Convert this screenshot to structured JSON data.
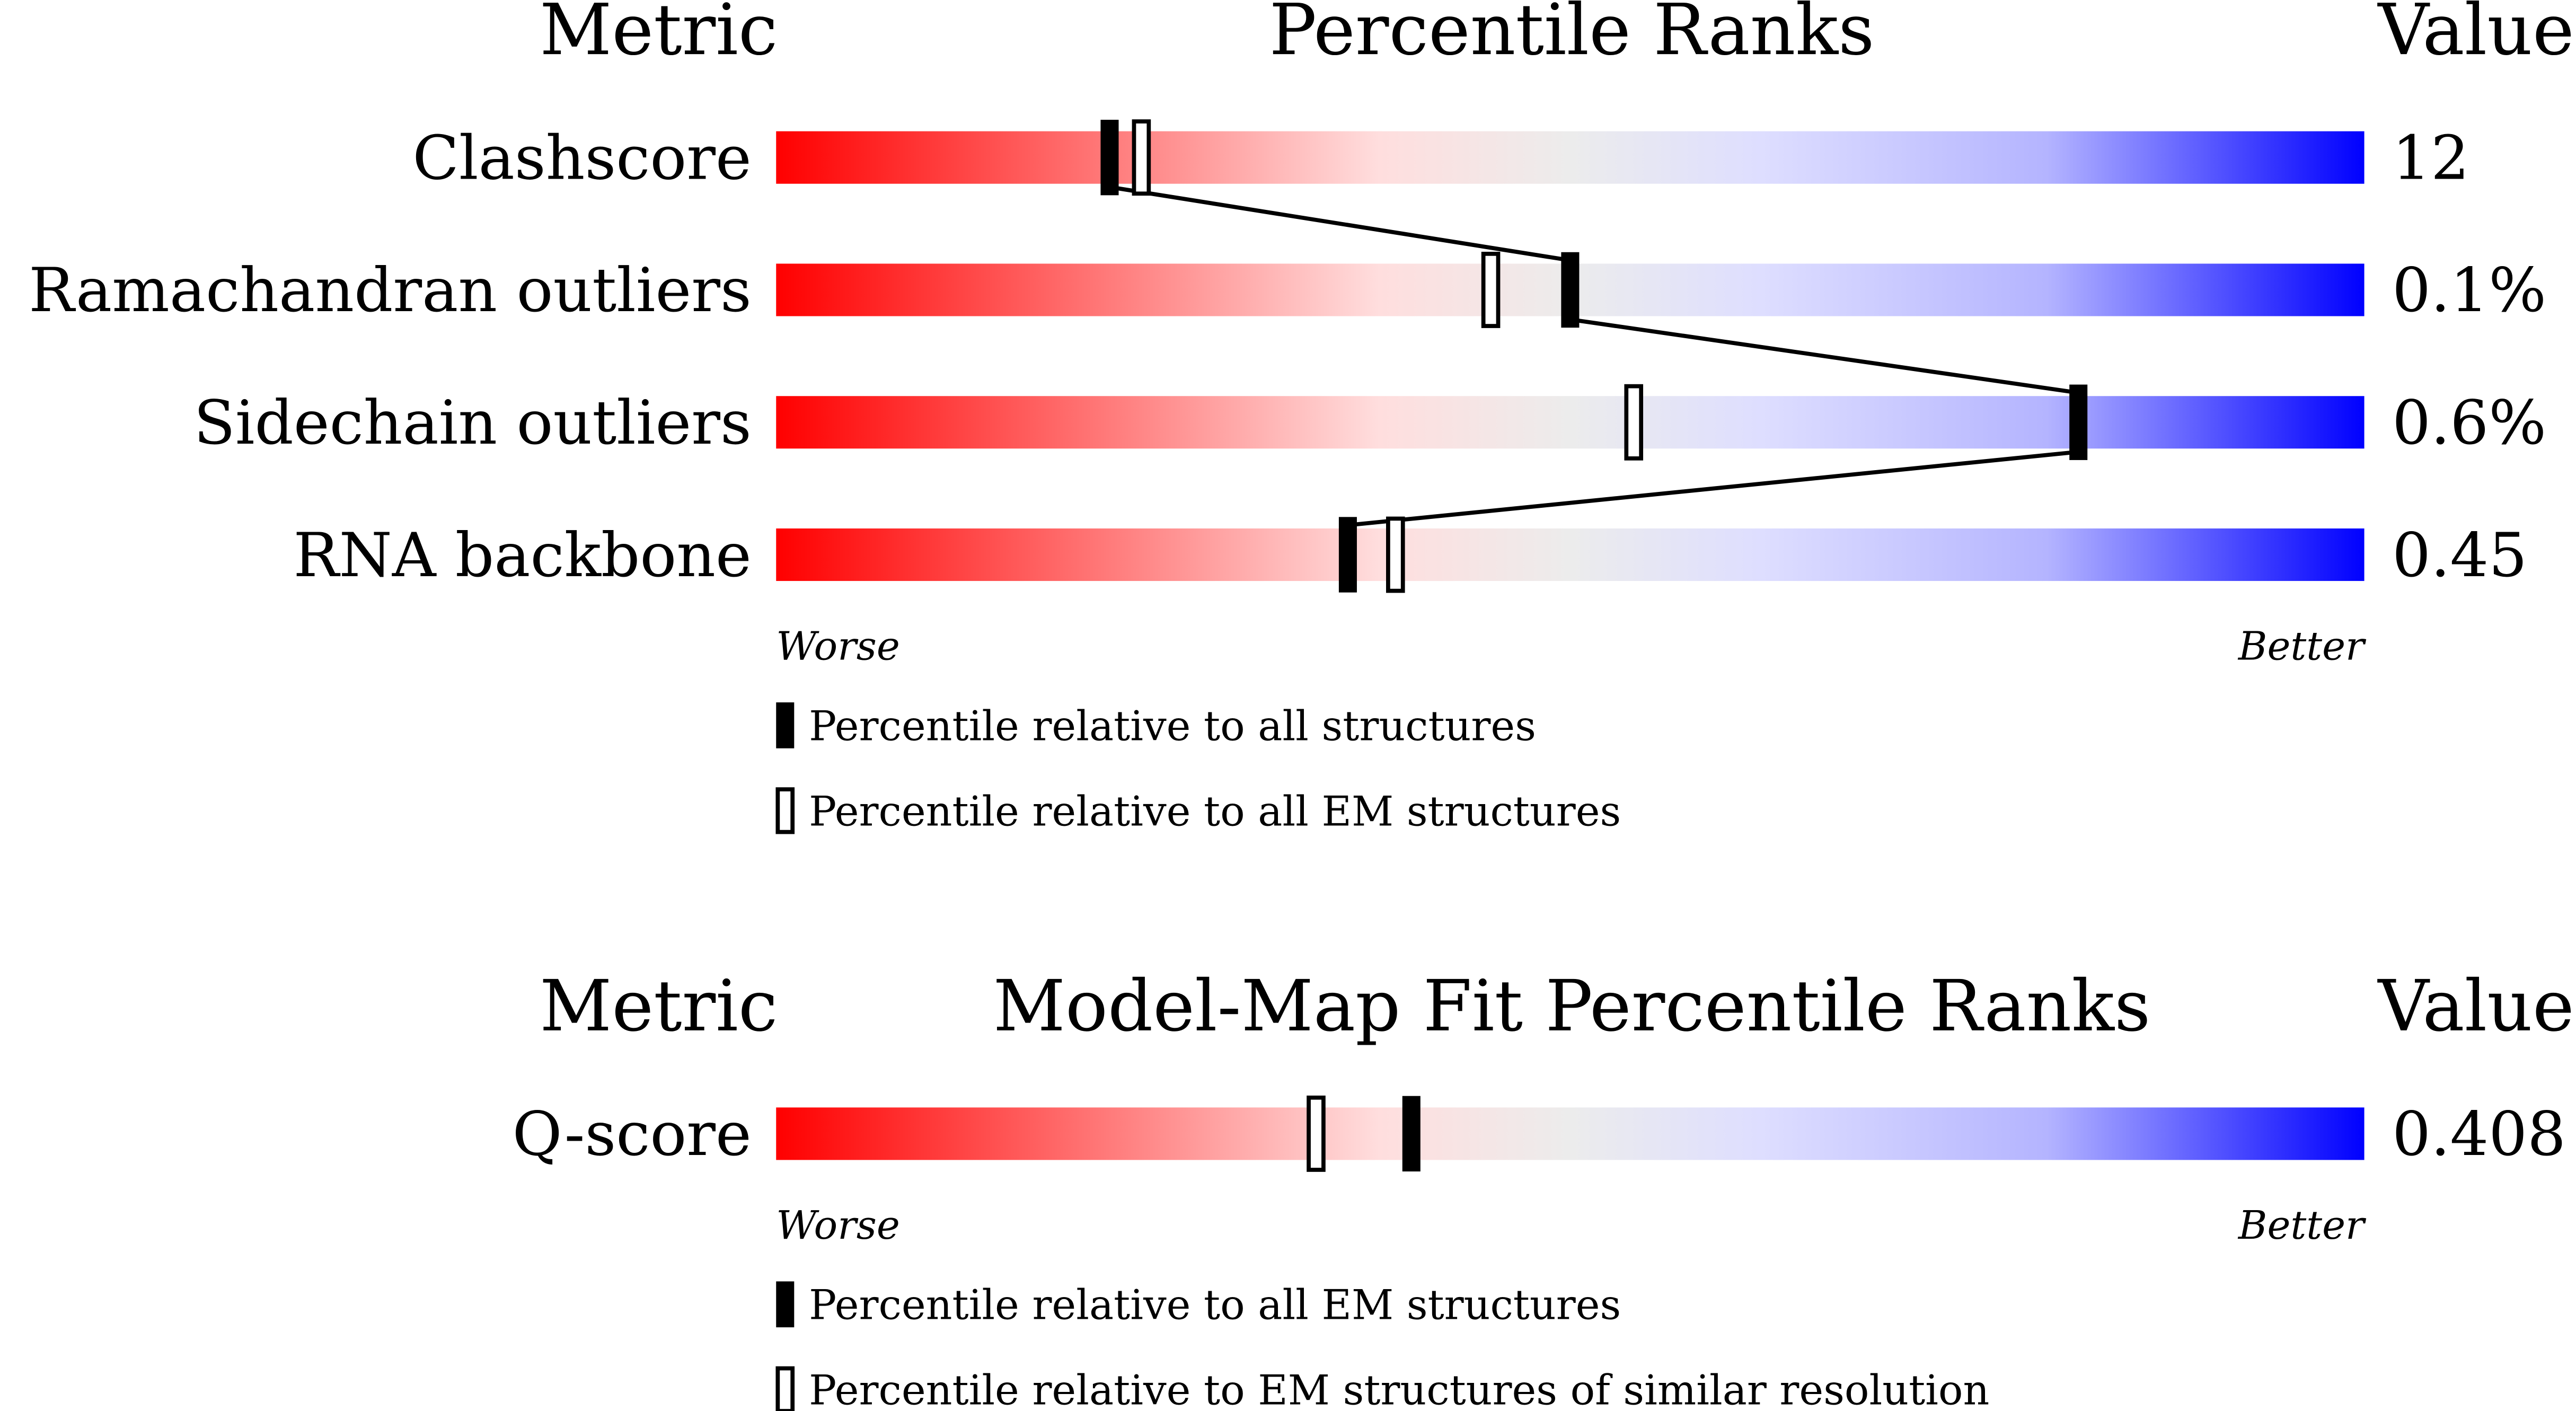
{
  "panels": [
    {
      "header": {
        "metric": "Metric",
        "title": "Percentile Ranks",
        "value": "Value"
      },
      "xlim": [
        0,
        100
      ],
      "rows": [
        {
          "metric": "Clashscore",
          "value": 12,
          "filled": 21,
          "open": 23
        },
        {
          "metric": "Ramachandran outliers",
          "value": "0.1%",
          "filled": 50,
          "open": 45
        },
        {
          "metric": "Sidechain outliers",
          "value": "0.6%",
          "filled": 82,
          "open": 54
        },
        {
          "metric": "RNA backbone",
          "value": 0.45,
          "filled": 36,
          "open": 39
        }
      ],
      "scale": {
        "low": "Worse",
        "high": "Better"
      },
      "legend": {
        "filled": "Percentile relative to all structures",
        "open": "Percentile relative to all EM structures"
      }
    },
    {
      "header": {
        "metric": "Metric",
        "title": "Model-Map Fit Percentile Ranks",
        "value": "Value"
      },
      "xlim": [
        0,
        100
      ],
      "rows": [
        {
          "metric": "Q-score",
          "value": 0.408,
          "filled": 40,
          "open": 34
        }
      ],
      "scale": {
        "low": "Worse",
        "high": "Better"
      },
      "legend": {
        "filled": "Percentile relative to all EM structures",
        "open": "Percentile relative to EM structures of similar resolution"
      }
    }
  ]
}
